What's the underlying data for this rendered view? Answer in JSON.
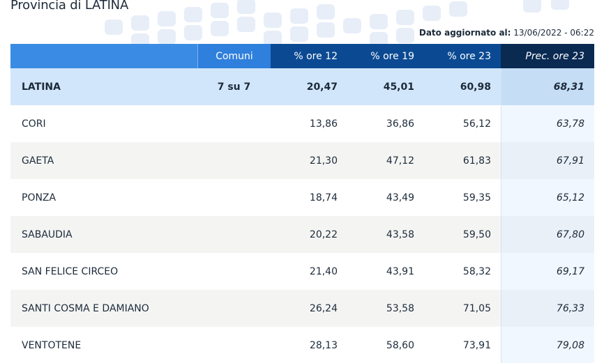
{
  "title": "Provincia di LATINA",
  "updated": {
    "label": "Dato aggiornato al:",
    "value": "13/06/2022 - 06:22"
  },
  "headers": {
    "name": "",
    "comuni": "Comuni",
    "ore12": "% ore 12",
    "ore19": "% ore 19",
    "ore23": "% ore 23",
    "prec": "Prec. ore 23"
  },
  "total": {
    "name": "LATINA",
    "comuni": "7 su 7",
    "ore12": "20,47",
    "ore19": "45,01",
    "ore23": "60,98",
    "prec": "68,31"
  },
  "rows": [
    {
      "name": "CORI",
      "comuni": "",
      "ore12": "13,86",
      "ore19": "36,86",
      "ore23": "56,12",
      "prec": "63,78"
    },
    {
      "name": "GAETA",
      "comuni": "",
      "ore12": "21,30",
      "ore19": "47,12",
      "ore23": "61,83",
      "prec": "67,91"
    },
    {
      "name": "PONZA",
      "comuni": "",
      "ore12": "18,74",
      "ore19": "43,49",
      "ore23": "59,35",
      "prec": "65,12"
    },
    {
      "name": "SABAUDIA",
      "comuni": "",
      "ore12": "20,22",
      "ore19": "43,58",
      "ore23": "59,50",
      "prec": "67,80"
    },
    {
      "name": "SAN FELICE CIRCEO",
      "comuni": "",
      "ore12": "21,40",
      "ore19": "43,91",
      "ore23": "58,32",
      "prec": "69,17"
    },
    {
      "name": "SANTI COSMA E DAMIANO",
      "comuni": "",
      "ore12": "26,24",
      "ore19": "53,58",
      "ore23": "71,05",
      "prec": "76,33"
    },
    {
      "name": "VENTOTENE",
      "comuni": "",
      "ore12": "28,13",
      "ore19": "58,60",
      "ore23": "73,91",
      "prec": "79,08"
    }
  ]
}
